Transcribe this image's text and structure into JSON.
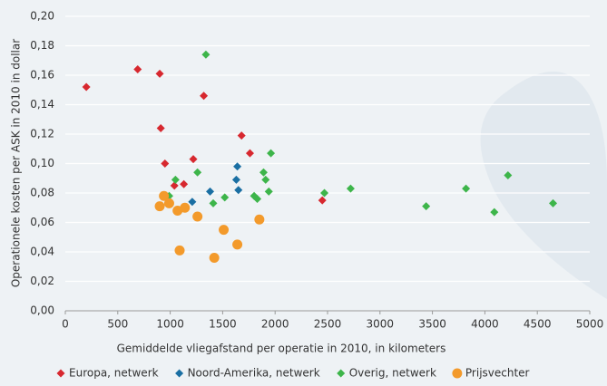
{
  "chart_data": {
    "type": "scatter",
    "x_label": "Gemiddelde vliegafstand per operatie in 2010, in kilometers",
    "y_label": "Operationele kosten per ASK in 2010 in dollar",
    "xlim": [
      0,
      5000
    ],
    "xticks": [
      0,
      500,
      1000,
      1500,
      2000,
      2500,
      3000,
      3500,
      4000,
      4500,
      5000
    ],
    "ylim": [
      0,
      0.2
    ],
    "yticks": [
      {
        "value": 0,
        "label": "0,00"
      },
      {
        "value": 0.02,
        "label": "0,02"
      },
      {
        "value": 0.04,
        "label": "0,04"
      },
      {
        "value": 0.06,
        "label": "0,06"
      },
      {
        "value": 0.08,
        "label": "0,08"
      },
      {
        "value": 0.1,
        "label": "0,10"
      },
      {
        "value": 0.12,
        "label": "0,12"
      },
      {
        "value": 0.14,
        "label": "0,14"
      },
      {
        "value": 0.16,
        "label": "0,16"
      },
      {
        "value": 0.18,
        "label": "0,18"
      },
      {
        "value": 0.2,
        "label": "0,20"
      }
    ],
    "grid": true,
    "legend": "bottom",
    "series": [
      {
        "name": "Europa, netwerk",
        "color": "#d7282f",
        "marker": "diamond",
        "x": [
          200,
          690,
          900,
          910,
          950,
          1040,
          1130,
          1220,
          1320,
          1680,
          1760,
          2450
        ],
        "values": [
          0.152,
          0.164,
          0.161,
          0.124,
          0.1,
          0.085,
          0.086,
          0.103,
          0.146,
          0.119,
          0.107,
          0.075
        ]
      },
      {
        "name": "Noord-Amerika, netwerk",
        "color": "#1a6fa3",
        "marker": "diamond",
        "x": [
          1210,
          1380,
          1640,
          1630,
          1650
        ],
        "values": [
          0.074,
          0.081,
          0.098,
          0.089,
          0.082
        ]
      },
      {
        "name": "Overig, netwerk",
        "color": "#3db54a",
        "marker": "diamond",
        "x": [
          1340,
          990,
          1050,
          1260,
          1410,
          1520,
          1800,
          1830,
          1890,
          1910,
          1940,
          1960,
          2470,
          2720,
          3440,
          3820,
          4090,
          4220,
          4650
        ],
        "values": [
          0.174,
          0.078,
          0.089,
          0.094,
          0.073,
          0.077,
          0.078,
          0.076,
          0.094,
          0.089,
          0.081,
          0.107,
          0.08,
          0.083,
          0.071,
          0.083,
          0.067,
          0.092,
          0.073
        ]
      },
      {
        "name": "Prijsvechter",
        "color": "#f39a2b",
        "marker": "circle",
        "x": [
          940,
          900,
          990,
          1070,
          1140,
          1090,
          1260,
          1510,
          1420,
          1640,
          1850
        ],
        "values": [
          0.078,
          0.071,
          0.073,
          0.068,
          0.07,
          0.041,
          0.064,
          0.055,
          0.036,
          0.045,
          0.062
        ]
      }
    ]
  }
}
